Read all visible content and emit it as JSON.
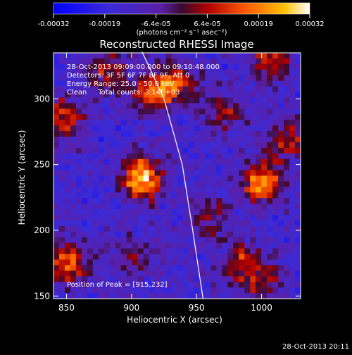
{
  "colorbar": {
    "tick_labels": [
      "-0.00032",
      "-0.00019",
      "-6.4e-05",
      "6.4e-05",
      "0.00019",
      "0.00032"
    ],
    "units": "(photons cm⁻² s⁻¹ asec⁻²)",
    "range": [
      -0.00032,
      0.00032
    ]
  },
  "chart_data": {
    "type": "heatmap",
    "title": "Reconstructed RHESSI Image",
    "xlabel": "Heliocentric X (arcsec)",
    "ylabel": "Heliocentric Y (arcsec)",
    "xlim": [
      840,
      1030
    ],
    "ylim": [
      148,
      335
    ],
    "x_ticks": [
      850,
      900,
      950,
      1000
    ],
    "y_ticks": [
      150,
      200,
      250,
      300
    ],
    "info_lines": [
      "28-Oct-2013 09:09:00.000 to 09:10:48.000",
      "Detectors: 3F 5F 6F 7F 8F 9F, Att 0",
      "Energy Range: 25.0 - 50.0 keV",
      "Clean     Total counts: 3.14E+03"
    ],
    "peak_label": "Position of Peak = [915,232]",
    "peak": [
      915,
      232
    ],
    "limb_curve": [
      [
        908,
        336
      ],
      [
        925,
        300
      ],
      [
        939,
        250
      ],
      [
        947,
        200
      ],
      [
        955,
        148
      ]
    ],
    "sources": [
      {
        "x": 908,
        "y": 240,
        "amp": 1.0
      },
      {
        "x": 1000,
        "y": 237,
        "amp": 0.85
      },
      {
        "x": 915,
        "y": 305,
        "amp": 0.65
      },
      {
        "x": 935,
        "y": 312,
        "amp": 0.6
      },
      {
        "x": 1008,
        "y": 328,
        "amp": 0.55
      },
      {
        "x": 850,
        "y": 175,
        "amp": 0.75
      },
      {
        "x": 848,
        "y": 285,
        "amp": 0.6
      },
      {
        "x": 1018,
        "y": 268,
        "amp": 0.55
      },
      {
        "x": 985,
        "y": 175,
        "amp": 0.55
      },
      {
        "x": 970,
        "y": 290,
        "amp": 0.45
      },
      {
        "x": 960,
        "y": 210,
        "amp": 0.4
      },
      {
        "x": 900,
        "y": 180,
        "amp": 0.35
      },
      {
        "x": 1000,
        "y": 160,
        "amp": 0.4
      },
      {
        "x": 880,
        "y": 320,
        "amp": 0.5
      }
    ]
  },
  "timestamp": "28-Oct-2013 20:11"
}
